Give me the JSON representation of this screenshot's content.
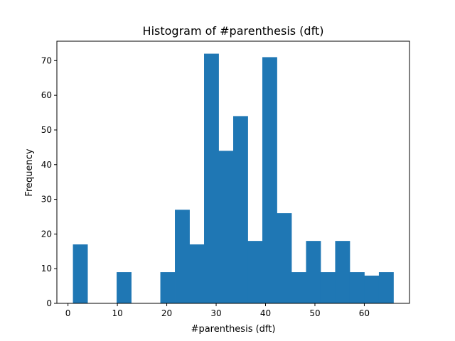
{
  "chart_data": {
    "type": "bar",
    "title": "Histogram of #parenthesis (dft)",
    "xlabel": "#parenthesis (dft)",
    "ylabel": "Frequency",
    "bin_edges": [
      1,
      3.95,
      6.9,
      9.85,
      12.8,
      15.75,
      18.7,
      21.65,
      24.6,
      27.55,
      30.5,
      33.45,
      36.4,
      39.35,
      42.3,
      45.25,
      48.2,
      51.15,
      54.1,
      57.05,
      60.0,
      62.95,
      65.9
    ],
    "values": [
      17,
      0,
      0,
      9,
      0,
      0,
      9,
      27,
      17,
      72,
      44,
      54,
      18,
      71,
      26,
      9,
      18,
      9,
      18,
      9,
      8,
      9
    ],
    "xlim": [
      -2.25,
      69.15
    ],
    "ylim": [
      0,
      75.6
    ],
    "xticks": [
      0,
      10,
      20,
      30,
      40,
      50,
      60
    ],
    "yticks": [
      0,
      10,
      20,
      30,
      40,
      50,
      60,
      70
    ],
    "bar_color": "#1f77b4",
    "grid": false,
    "legend": "none"
  }
}
